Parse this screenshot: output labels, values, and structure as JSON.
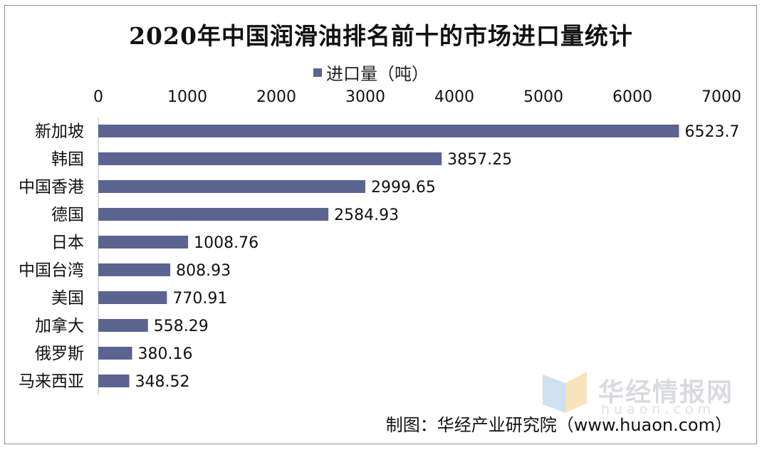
{
  "chart_data": {
    "type": "bar",
    "orientation": "horizontal",
    "title": "2020年中国润滑油排名前十的市场进口量统计",
    "legend": "进口量（吨）",
    "legend_position": "top",
    "xaxis_position": "top",
    "categories": [
      "新加坡",
      "韩国",
      "中国香港",
      "德国",
      "日本",
      "中国台湾",
      "美国",
      "加拿大",
      "俄罗斯",
      "马来西亚"
    ],
    "values": [
      6523.7,
      3857.25,
      2999.65,
      2584.93,
      1008.76,
      808.93,
      770.91,
      558.29,
      380.16,
      348.52
    ],
    "value_labels": [
      "6523.7",
      "3857.25",
      "2999.65",
      "2584.93",
      "1008.76",
      "808.93",
      "770.91",
      "558.29",
      "380.16",
      "348.52"
    ],
    "xlim": [
      0,
      7000
    ],
    "ticks": [
      0,
      1000,
      2000,
      3000,
      4000,
      5000,
      6000,
      7000
    ],
    "tick_labels": [
      "0",
      "1000",
      "2000",
      "3000",
      "4000",
      "5000",
      "6000",
      "7000"
    ],
    "grid": false,
    "bar_color": "#5b6491"
  },
  "watermark": {
    "name": "华经情报网",
    "domain": "huaon.com"
  },
  "source": "制图：华经产业研究院（www.huaon.com）"
}
